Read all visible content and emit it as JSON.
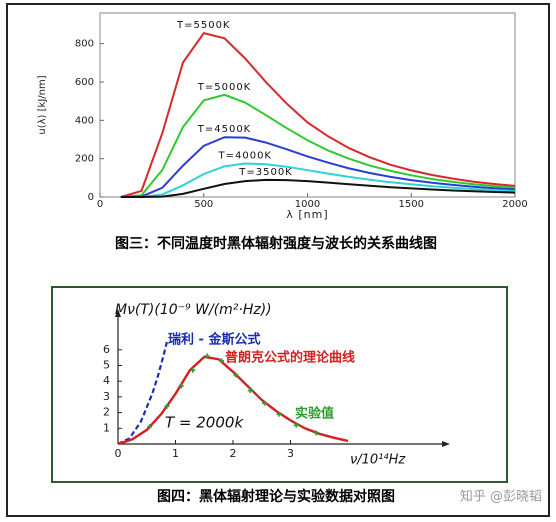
{
  "chart_data": [
    {
      "type": "line",
      "ylabel": "u(λ) [kJ/nm]",
      "xlabel": "λ [nm]",
      "caption": "图三：不同温度时黑体辐射强度与波长的关系曲线图",
      "x": [
        100,
        200,
        300,
        400,
        500,
        600,
        700,
        800,
        900,
        1000,
        1100,
        1200,
        1300,
        1400,
        1500,
        1600,
        1700,
        1800,
        1900,
        2000
      ],
      "series": [
        {
          "name": "T=5500K",
          "color": "#d62a2a",
          "values": [
            0,
            32,
            333,
            702,
            855,
            828,
            722,
            599,
            487,
            389,
            316,
            255,
            207,
            168,
            139,
            115,
            96,
            80,
            68,
            58
          ]
        },
        {
          "name": "T=5000K",
          "color": "#2fc92f",
          "values": [
            0,
            9,
            141,
            365,
            504,
            533,
            492,
            427,
            359,
            296,
            242,
            200,
            164,
            136,
            113,
            94,
            79,
            67,
            57,
            48
          ]
        },
        {
          "name": "T=4500K",
          "color": "#2a3fd0",
          "values": [
            0,
            2,
            48,
            164,
            267,
            312,
            310,
            284,
            249,
            212,
            179,
            149,
            125,
            105,
            88,
            74,
            63,
            54,
            46,
            39
          ]
        },
        {
          "name": "T=4000K",
          "color": "#2ed3d8",
          "values": [
            0,
            0,
            13,
            61,
            120,
            160,
            175,
            171,
            158,
            140,
            122,
            105,
            90,
            77,
            66,
            56,
            48,
            41,
            36,
            31
          ]
        },
        {
          "name": "T=3500K",
          "color": "#111111",
          "values": [
            0,
            0,
            2,
            16,
            43,
            68,
            83,
            89,
            88,
            83,
            75,
            67,
            59,
            51,
            45,
            39,
            34,
            30,
            26,
            23
          ]
        }
      ],
      "xlim": [
        0,
        2000
      ],
      "xticks": [
        0,
        500,
        1000,
        1500,
        2000
      ],
      "ylim": [
        0,
        960
      ],
      "yticks": [
        0,
        200,
        400,
        600,
        800
      ],
      "grid": false
    },
    {
      "type": "line",
      "ylabel": "Mν(T)(10⁻⁹ W/(m²·Hz))",
      "xlabel": "ν/10¹⁴Hz",
      "caption": "图四：黑体辐射理论与实验数据对照图",
      "annotation": "T = 2000k",
      "series": [
        {
          "name": "瑞利 - 金斯公式",
          "color": "#1a2db0",
          "style": "dashed",
          "x": [
            0,
            0.2,
            0.4,
            0.6,
            0.7,
            0.8,
            0.85
          ],
          "values": [
            0,
            0.36,
            1.44,
            3.24,
            4.41,
            5.76,
            6.5
          ]
        },
        {
          "name": "普朗克公式的理论曲线",
          "color": "#d42020",
          "style": "solid",
          "x": [
            0,
            0.25,
            0.5,
            0.75,
            1.0,
            1.25,
            1.5,
            1.75,
            2.0,
            2.25,
            2.5,
            2.75,
            3.0,
            3.25,
            3.5,
            3.75,
            4.0
          ],
          "values": [
            0,
            0.3,
            0.9,
            1.9,
            3.2,
            4.7,
            5.55,
            5.4,
            4.6,
            3.7,
            2.8,
            2.1,
            1.5,
            1.0,
            0.65,
            0.4,
            0.2
          ]
        },
        {
          "name": "实验值",
          "color": "#2f9a2f",
          "style": "points",
          "x": [
            0.55,
            0.85,
            1.1,
            1.3,
            1.55,
            1.8,
            2.05,
            2.3,
            2.55,
            2.8,
            3.1,
            3.45
          ],
          "values": [
            1.1,
            2.4,
            3.7,
            4.7,
            5.6,
            5.3,
            4.4,
            3.4,
            2.6,
            1.9,
            1.2,
            0.7
          ]
        }
      ],
      "xlim": [
        0,
        5.6
      ],
      "xticks": [
        0,
        1,
        2,
        3
      ],
      "ylim": [
        0,
        8.6
      ],
      "yticks": [
        1,
        2,
        3,
        4,
        5,
        6
      ],
      "grid": false
    }
  ],
  "watermark": "知乎 @彭晓韬"
}
